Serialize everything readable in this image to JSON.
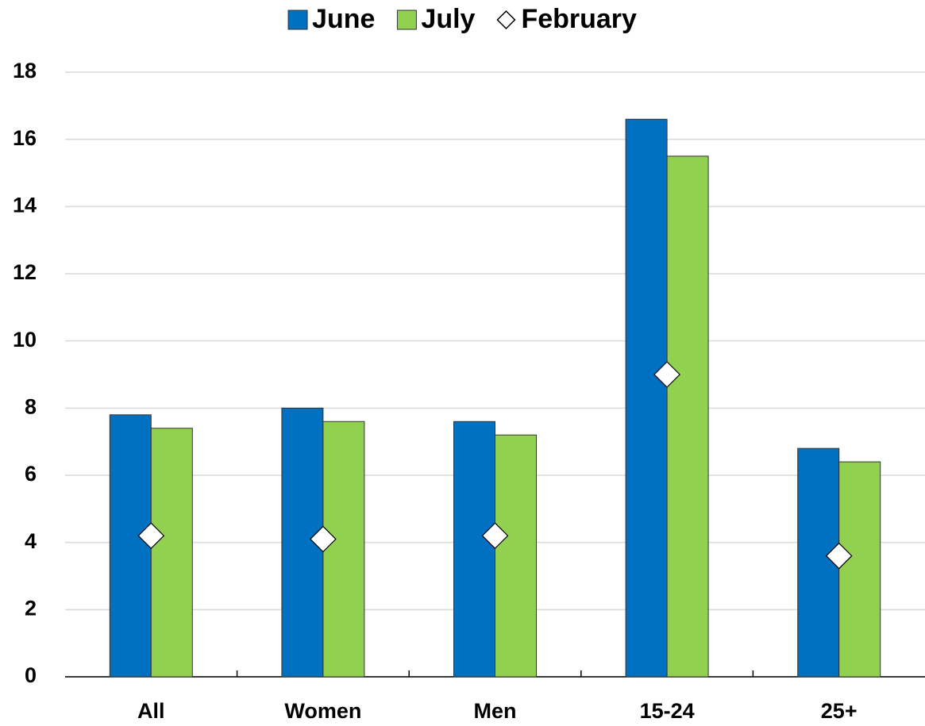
{
  "chart_data": {
    "type": "bar",
    "categories": [
      "All",
      "Women",
      "Men",
      "15-24",
      "25+"
    ],
    "series": [
      {
        "name": "June",
        "color": "#0070c0",
        "values": [
          7.8,
          8.0,
          7.6,
          16.6,
          6.8
        ]
      },
      {
        "name": "July",
        "color": "#92d050",
        "values": [
          7.4,
          7.6,
          7.2,
          15.5,
          6.4
        ]
      },
      {
        "name": "February",
        "color": "#ffffff",
        "marker": "diamond",
        "values": [
          4.2,
          4.1,
          4.2,
          9.0,
          3.6
        ]
      }
    ],
    "ylim": [
      0,
      18
    ],
    "yticks": [
      0,
      2,
      4,
      6,
      8,
      10,
      12,
      14,
      16,
      18
    ],
    "grid": true,
    "legend": "top"
  }
}
